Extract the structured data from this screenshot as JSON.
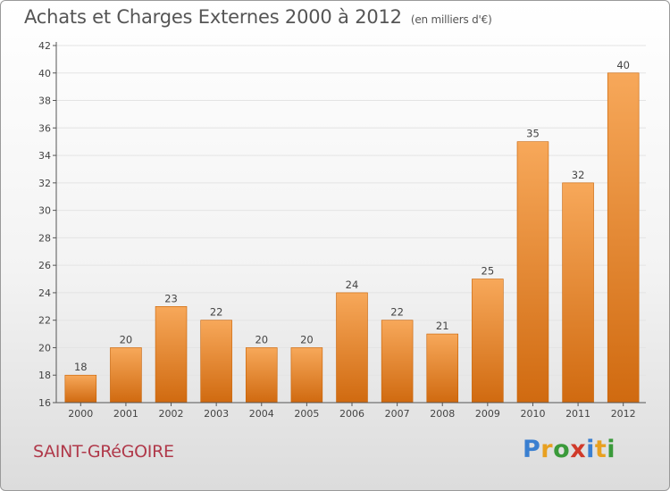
{
  "header": {
    "title": "Achats et Charges Externes 2000 à 2012",
    "unit": "(en milliers d'€)"
  },
  "footer": {
    "commune": "SAINT-GRéGOIRE",
    "logo_letters": [
      "P",
      "r",
      "o",
      "x",
      "i",
      "t",
      "i"
    ],
    "logo_colors": [
      "#3a7fd0",
      "#e8a020",
      "#3a9a3a",
      "#d03a2a",
      "#3a7fd0",
      "#e8a020",
      "#3a9a3a"
    ]
  },
  "colors": {
    "bar_top": "#f7a85a",
    "bar_bottom": "#d06a10",
    "bar_edge": "#c86000",
    "axis": "#555555",
    "grid": "#e4e4e4"
  },
  "chart_data": {
    "type": "bar",
    "categories": [
      "2000",
      "2001",
      "2002",
      "2003",
      "2004",
      "2005",
      "2006",
      "2007",
      "2008",
      "2009",
      "2010",
      "2011",
      "2012"
    ],
    "values": [
      18,
      20,
      23,
      22,
      20,
      20,
      24,
      22,
      21,
      25,
      35,
      32,
      40
    ],
    "ylim": [
      16,
      42
    ],
    "yticks": [
      16,
      18,
      20,
      22,
      24,
      26,
      28,
      30,
      32,
      34,
      36,
      38,
      40,
      42
    ],
    "title": "Achats et Charges Externes 2000 à 2012",
    "xlabel": "",
    "ylabel": "",
    "grid": true,
    "legend": "none"
  }
}
